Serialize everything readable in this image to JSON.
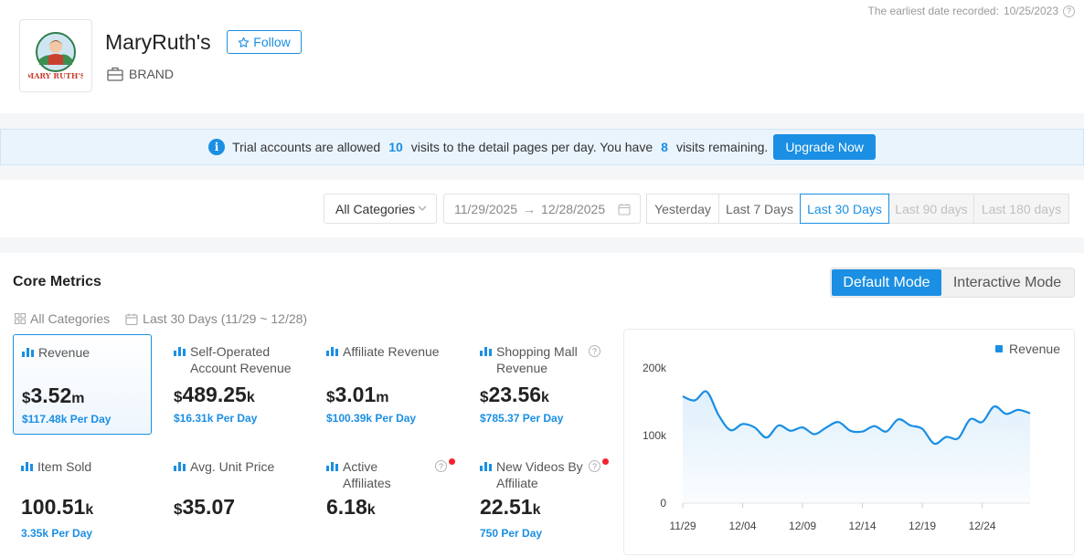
{
  "header": {
    "earliest_label": "The earliest date recorded:",
    "earliest_date": "10/25/2023",
    "help": "?",
    "brand_name": "MaryRuth's",
    "follow_label": "Follow",
    "brand_type": "BRAND",
    "logo_text": "MARY RUTH'S"
  },
  "banner": {
    "text_1": "Trial accounts are allowed",
    "allowed_visits": "10",
    "text_2": "visits to the detail pages per day. You have",
    "remaining_visits": "8",
    "text_3": "visits remaining.",
    "upgrade_label": "Upgrade Now"
  },
  "filters": {
    "category": "All Categories",
    "date_start": "11/29/2025",
    "date_end": "12/28/2025",
    "ranges": [
      {
        "label": "Yesterday",
        "state": "normal"
      },
      {
        "label": "Last 7 Days",
        "state": "normal"
      },
      {
        "label": "Last 30 Days",
        "state": "active"
      },
      {
        "label": "Last 90 days",
        "state": "disabled"
      },
      {
        "label": "Last 180 days",
        "state": "disabled"
      }
    ]
  },
  "core": {
    "title": "Core Metrics",
    "mode_default": "Default Mode",
    "mode_interactive": "Interactive Mode",
    "sub_category": "All Categories",
    "sub_period": "Last 30 Days (11/29 ~ 12/28)",
    "metrics": [
      {
        "label": "Revenue",
        "currency": "$",
        "value": "3.52",
        "unit": "m",
        "sub": "$117.48k Per Day"
      },
      {
        "label": "Self-Operated Account Revenue",
        "currency": "$",
        "value": "489.25",
        "unit": "k",
        "sub": "$16.31k Per Day"
      },
      {
        "label": "Affiliate Revenue",
        "currency": "$",
        "value": "3.01",
        "unit": "m",
        "sub": "$100.39k Per Day"
      },
      {
        "label": "Shopping Mall Revenue",
        "currency": "$",
        "value": "23.56",
        "unit": "k",
        "sub": "$785.37 Per Day"
      },
      {
        "label": "Item Sold",
        "currency": "",
        "value": "100.51",
        "unit": "k",
        "sub": "3.35k Per Day"
      },
      {
        "label": "Avg. Unit Price",
        "currency": "$",
        "value": "35.07",
        "unit": "",
        "sub": ""
      },
      {
        "label": "Active Affiliates",
        "currency": "",
        "value": "6.18",
        "unit": "k",
        "sub": ""
      },
      {
        "label": "New Videos By Affiliate",
        "currency": "",
        "value": "22.51",
        "unit": "k",
        "sub": "750 Per Day"
      }
    ]
  },
  "colors": {
    "accent": "#1a8fe3",
    "alert": "#f5222d"
  },
  "chart_data": {
    "type": "area",
    "series": [
      {
        "name": "Revenue",
        "x": [
          "11/29",
          "11/30",
          "12/01",
          "12/02",
          "12/03",
          "12/04",
          "12/05",
          "12/06",
          "12/07",
          "12/08",
          "12/09",
          "12/10",
          "12/11",
          "12/12",
          "12/13",
          "12/14",
          "12/15",
          "12/16",
          "12/17",
          "12/18",
          "12/19",
          "12/20",
          "12/21",
          "12/22",
          "12/23",
          "12/24",
          "12/25",
          "12/26",
          "12/27",
          "12/28"
        ],
        "values": [
          158000,
          152000,
          165000,
          130000,
          108000,
          117000,
          112000,
          97000,
          115000,
          107000,
          112000,
          102000,
          112000,
          120000,
          107000,
          106000,
          114000,
          106000,
          124000,
          115000,
          110000,
          88000,
          98000,
          96000,
          124000,
          120000,
          143000,
          132000,
          138000,
          133000
        ]
      }
    ],
    "x_ticks": [
      "11/29",
      "12/04",
      "12/09",
      "12/14",
      "12/19",
      "12/24"
    ],
    "y_ticks": [
      "0",
      "100k",
      "200k"
    ],
    "ylim": [
      0,
      200000
    ],
    "legend": "top-right",
    "grid": false
  }
}
